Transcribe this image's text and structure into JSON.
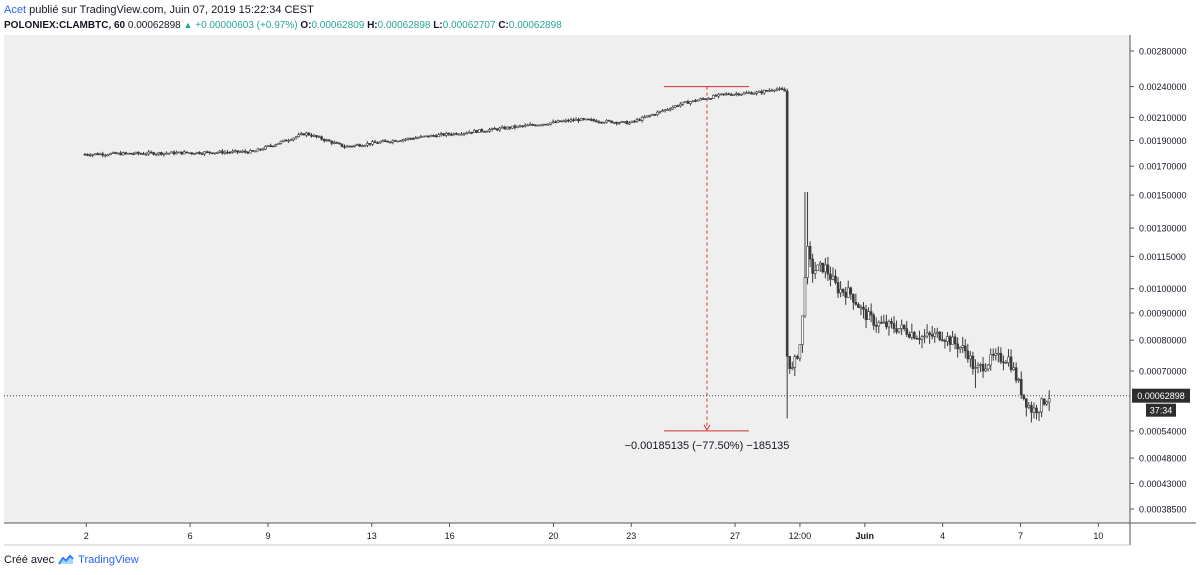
{
  "header": {
    "author": "Acet",
    "published_text": "publié sur TradingView.com, Juin 07, 2019 15:22:34 CEST"
  },
  "symbol_bar": {
    "symbol": "POLONIEX:CLAMBTC, 60",
    "last": "0.00062898",
    "change": "+0.00000603 (+0.97%)",
    "o_label": "O:",
    "o_value": "0.00062809",
    "h_label": "H:",
    "h_value": "0.00062898",
    "l_label": "L:",
    "l_value": "0.00062707",
    "c_label": "C:",
    "c_value": "0.00062898"
  },
  "footer": {
    "prefix": "Créé avec",
    "brand": "TradingView"
  },
  "colors": {
    "plot_bg": "#efefef",
    "candle": "#3b3b3b",
    "measure": "#d32f2f",
    "label_bg": "#2d2d2d"
  },
  "chart_data": {
    "type": "candlestick",
    "scale": "log",
    "y_ticks": [
      "0.00280000",
      "0.00240000",
      "0.00210000",
      "0.00190000",
      "0.00170000",
      "0.00150000",
      "0.00130000",
      "0.00115000",
      "0.00100000",
      "0.00090000",
      "0.00080000",
      "0.00070000",
      "0.00054000",
      "0.00048000",
      "0.00043000",
      "0.00038500"
    ],
    "x_ticks": [
      "2",
      "6",
      "9",
      "13",
      "16",
      "20",
      "23",
      "27",
      "12:00",
      "Juin",
      "4",
      "7",
      "10"
    ],
    "price_label": "0.00062898",
    "countdown": "37:34",
    "measurement": "−0.00185135 (−77.50%) −185135",
    "measure_range": [
      0.0024,
      0.00054
    ],
    "path": [
      [
        0.0,
        0.00179
      ],
      [
        6.5,
        0.00181
      ],
      [
        8.5,
        0.00196
      ],
      [
        10.0,
        0.00185
      ],
      [
        13.0,
        0.00193
      ],
      [
        16.0,
        0.002
      ],
      [
        19.0,
        0.00208
      ],
      [
        21.0,
        0.00205
      ],
      [
        23.0,
        0.00223
      ],
      [
        24.6,
        0.00232
      ],
      [
        25.3,
        0.00233
      ],
      [
        26.0,
        0.00234
      ],
      [
        26.6,
        0.00238
      ],
      [
        27.0,
        0.00235
      ],
      [
        27.05,
        0.00075
      ],
      [
        27.25,
        0.0007
      ],
      [
        27.6,
        0.0008
      ],
      [
        27.8,
        0.0012
      ],
      [
        28.0,
        0.00108
      ],
      [
        28.5,
        0.0011
      ],
      [
        29.0,
        0.001
      ],
      [
        29.5,
        0.00098
      ],
      [
        30.0,
        0.0009
      ],
      [
        30.5,
        0.00086
      ],
      [
        31.5,
        0.00084
      ],
      [
        32.3,
        0.00081
      ],
      [
        33.0,
        0.00082
      ],
      [
        33.5,
        0.00079
      ],
      [
        34.0,
        0.00076
      ],
      [
        34.3,
        0.0007
      ],
      [
        35.0,
        0.00074
      ],
      [
        35.6,
        0.00074
      ],
      [
        36.2,
        0.00062
      ],
      [
        36.5,
        0.00059
      ],
      [
        36.8,
        0.0006
      ],
      [
        37.0,
        0.00062
      ],
      [
        37.2,
        0.00063
      ]
    ]
  }
}
